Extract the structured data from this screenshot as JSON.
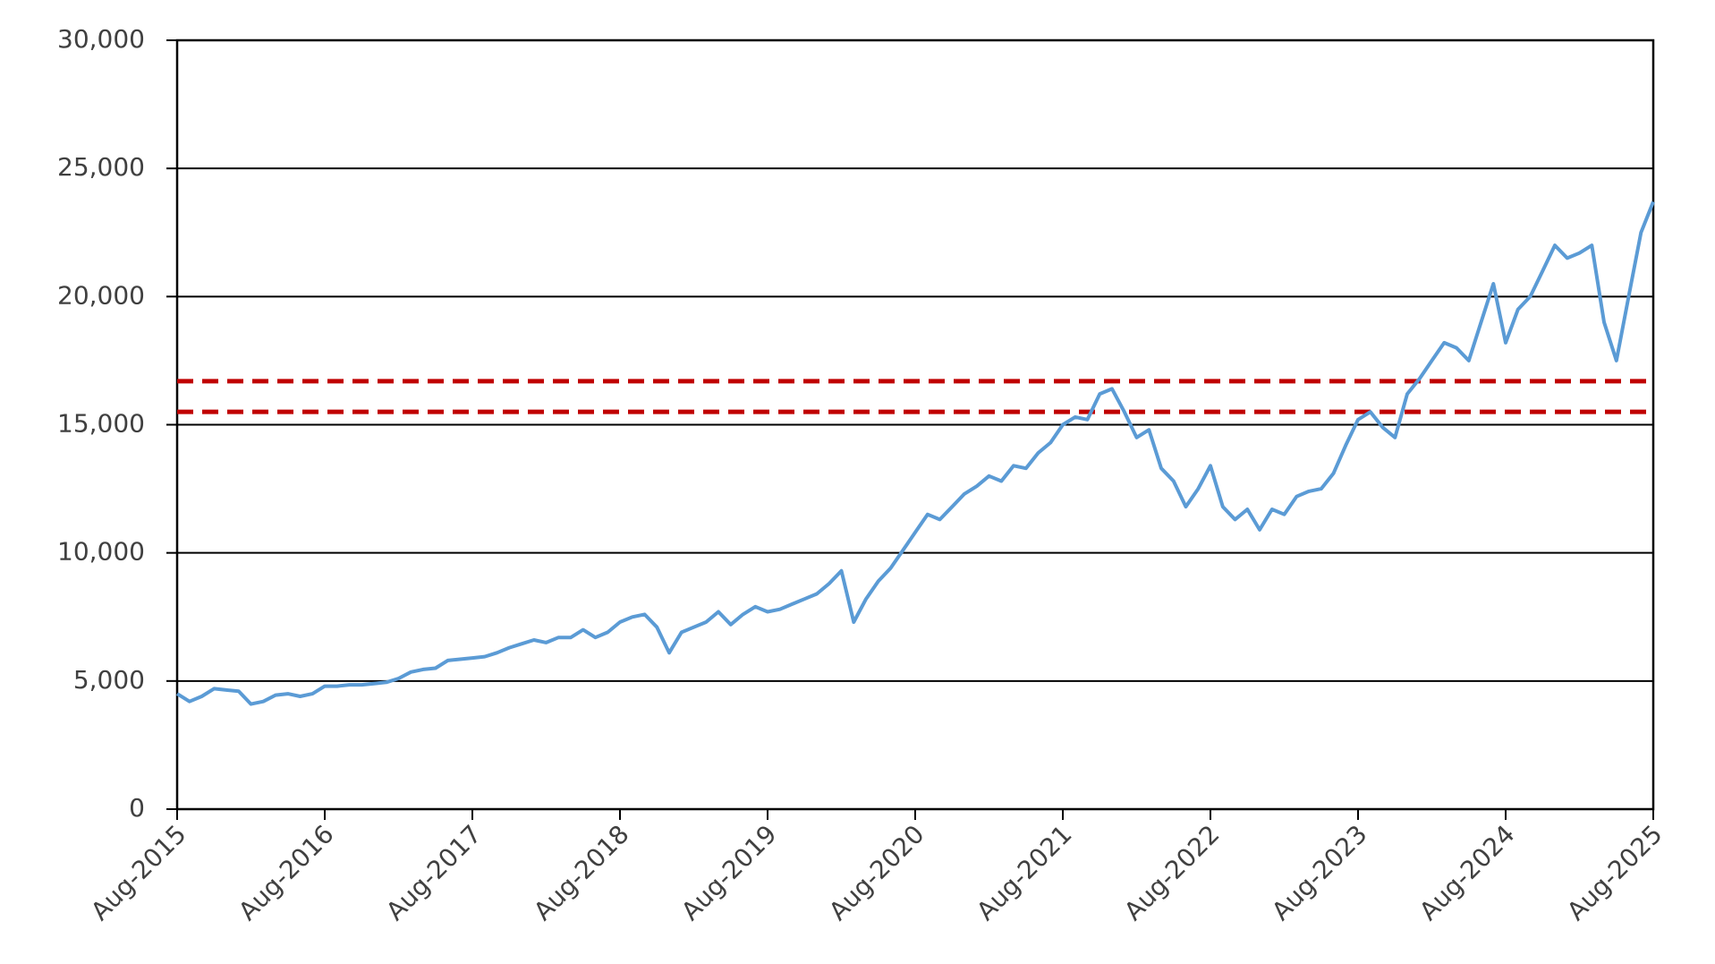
{
  "chart_data": {
    "type": "line",
    "x": [
      "2015-08",
      "2015-09",
      "2015-10",
      "2015-11",
      "2015-12",
      "2016-01",
      "2016-02",
      "2016-03",
      "2016-04",
      "2016-05",
      "2016-06",
      "2016-07",
      "2016-08",
      "2016-09",
      "2016-10",
      "2016-11",
      "2016-12",
      "2017-01",
      "2017-02",
      "2017-03",
      "2017-04",
      "2017-05",
      "2017-06",
      "2017-07",
      "2017-08",
      "2017-09",
      "2017-10",
      "2017-11",
      "2017-12",
      "2018-01",
      "2018-02",
      "2018-03",
      "2018-04",
      "2018-05",
      "2018-06",
      "2018-07",
      "2018-08",
      "2018-09",
      "2018-10",
      "2018-11",
      "2018-12",
      "2019-01",
      "2019-02",
      "2019-03",
      "2019-04",
      "2019-05",
      "2019-06",
      "2019-07",
      "2019-08",
      "2019-09",
      "2019-10",
      "2019-11",
      "2019-12",
      "2020-01",
      "2020-02",
      "2020-03",
      "2020-04",
      "2020-05",
      "2020-06",
      "2020-07",
      "2020-08",
      "2020-09",
      "2020-10",
      "2020-11",
      "2020-12",
      "2021-01",
      "2021-02",
      "2021-03",
      "2021-04",
      "2021-05",
      "2021-06",
      "2021-07",
      "2021-08",
      "2021-09",
      "2021-10",
      "2021-11",
      "2021-12",
      "2022-01",
      "2022-02",
      "2022-03",
      "2022-04",
      "2022-05",
      "2022-06",
      "2022-07",
      "2022-08",
      "2022-09",
      "2022-10",
      "2022-11",
      "2022-12",
      "2023-01",
      "2023-02",
      "2023-03",
      "2023-04",
      "2023-05",
      "2023-06",
      "2023-07",
      "2023-08",
      "2023-09",
      "2023-10",
      "2023-11",
      "2023-12",
      "2024-01",
      "2024-02",
      "2024-03",
      "2024-04",
      "2024-05",
      "2024-06",
      "2024-07",
      "2024-08",
      "2024-09",
      "2024-10",
      "2024-11",
      "2024-12",
      "2025-01",
      "2025-02",
      "2025-03",
      "2025-04",
      "2025-05",
      "2025-06",
      "2025-07",
      "2025-08"
    ],
    "values": [
      4500,
      4200,
      4400,
      4700,
      4650,
      4600,
      4100,
      4200,
      4450,
      4500,
      4400,
      4500,
      4800,
      4800,
      4850,
      4850,
      4900,
      4950,
      5100,
      5350,
      5450,
      5500,
      5800,
      5850,
      5900,
      5950,
      6100,
      6300,
      6450,
      6600,
      6500,
      6700,
      6700,
      7000,
      6700,
      6900,
      7300,
      7500,
      7600,
      7100,
      6100,
      6900,
      7100,
      7300,
      7700,
      7200,
      7600,
      7900,
      7700,
      7800,
      8000,
      8200,
      8400,
      8800,
      9300,
      7300,
      8200,
      8900,
      9400,
      10100,
      10800,
      11500,
      11300,
      11800,
      12300,
      12600,
      13000,
      12800,
      13400,
      13300,
      13900,
      14300,
      15000,
      15300,
      15200,
      16200,
      16400,
      15500,
      14500,
      14800,
      13300,
      12800,
      11800,
      12500,
      13400,
      11800,
      11300,
      11700,
      10900,
      11700,
      11500,
      12200,
      12400,
      12500,
      13100,
      14200,
      15200,
      15500,
      14900,
      14500,
      16200,
      16800,
      17500,
      18200,
      18000,
      17500,
      19000,
      20500,
      18200,
      19500,
      20000,
      21000,
      22000,
      21500,
      21700,
      22000,
      19000,
      17500,
      20000,
      22500,
      23700
    ],
    "color": "#5b9bd5",
    "xlim": [
      "2015-08",
      "2025-08"
    ],
    "xticks": [
      {
        "value": "2015-08",
        "label": "Aug-2015"
      },
      {
        "value": "2016-08",
        "label": "Aug-2016"
      },
      {
        "value": "2017-08",
        "label": "Aug-2017"
      },
      {
        "value": "2018-08",
        "label": "Aug-2018"
      },
      {
        "value": "2019-08",
        "label": "Aug-2019"
      },
      {
        "value": "2020-08",
        "label": "Aug-2020"
      },
      {
        "value": "2021-08",
        "label": "Aug-2021"
      },
      {
        "value": "2022-08",
        "label": "Aug-2022"
      },
      {
        "value": "2023-08",
        "label": "Aug-2023"
      },
      {
        "value": "2024-08",
        "label": "Aug-2024"
      },
      {
        "value": "2025-08",
        "label": "Aug-2025"
      }
    ],
    "ylim": [
      0,
      30000
    ],
    "yticks": [
      0,
      {
        "value": 5000,
        "label": "5,000"
      },
      {
        "value": 10000,
        "label": "10,000"
      },
      {
        "value": 15000,
        "label": "15,000"
      },
      {
        "value": 20000,
        "label": "20,000"
      },
      {
        "value": 25000,
        "label": "25,000"
      },
      {
        "value": 30000,
        "label": "30,000"
      }
    ],
    "grid": true,
    "reference_lines": [
      {
        "value": 16700,
        "color": "#c00000"
      },
      {
        "value": 15500,
        "color": "#c00000"
      }
    ]
  }
}
